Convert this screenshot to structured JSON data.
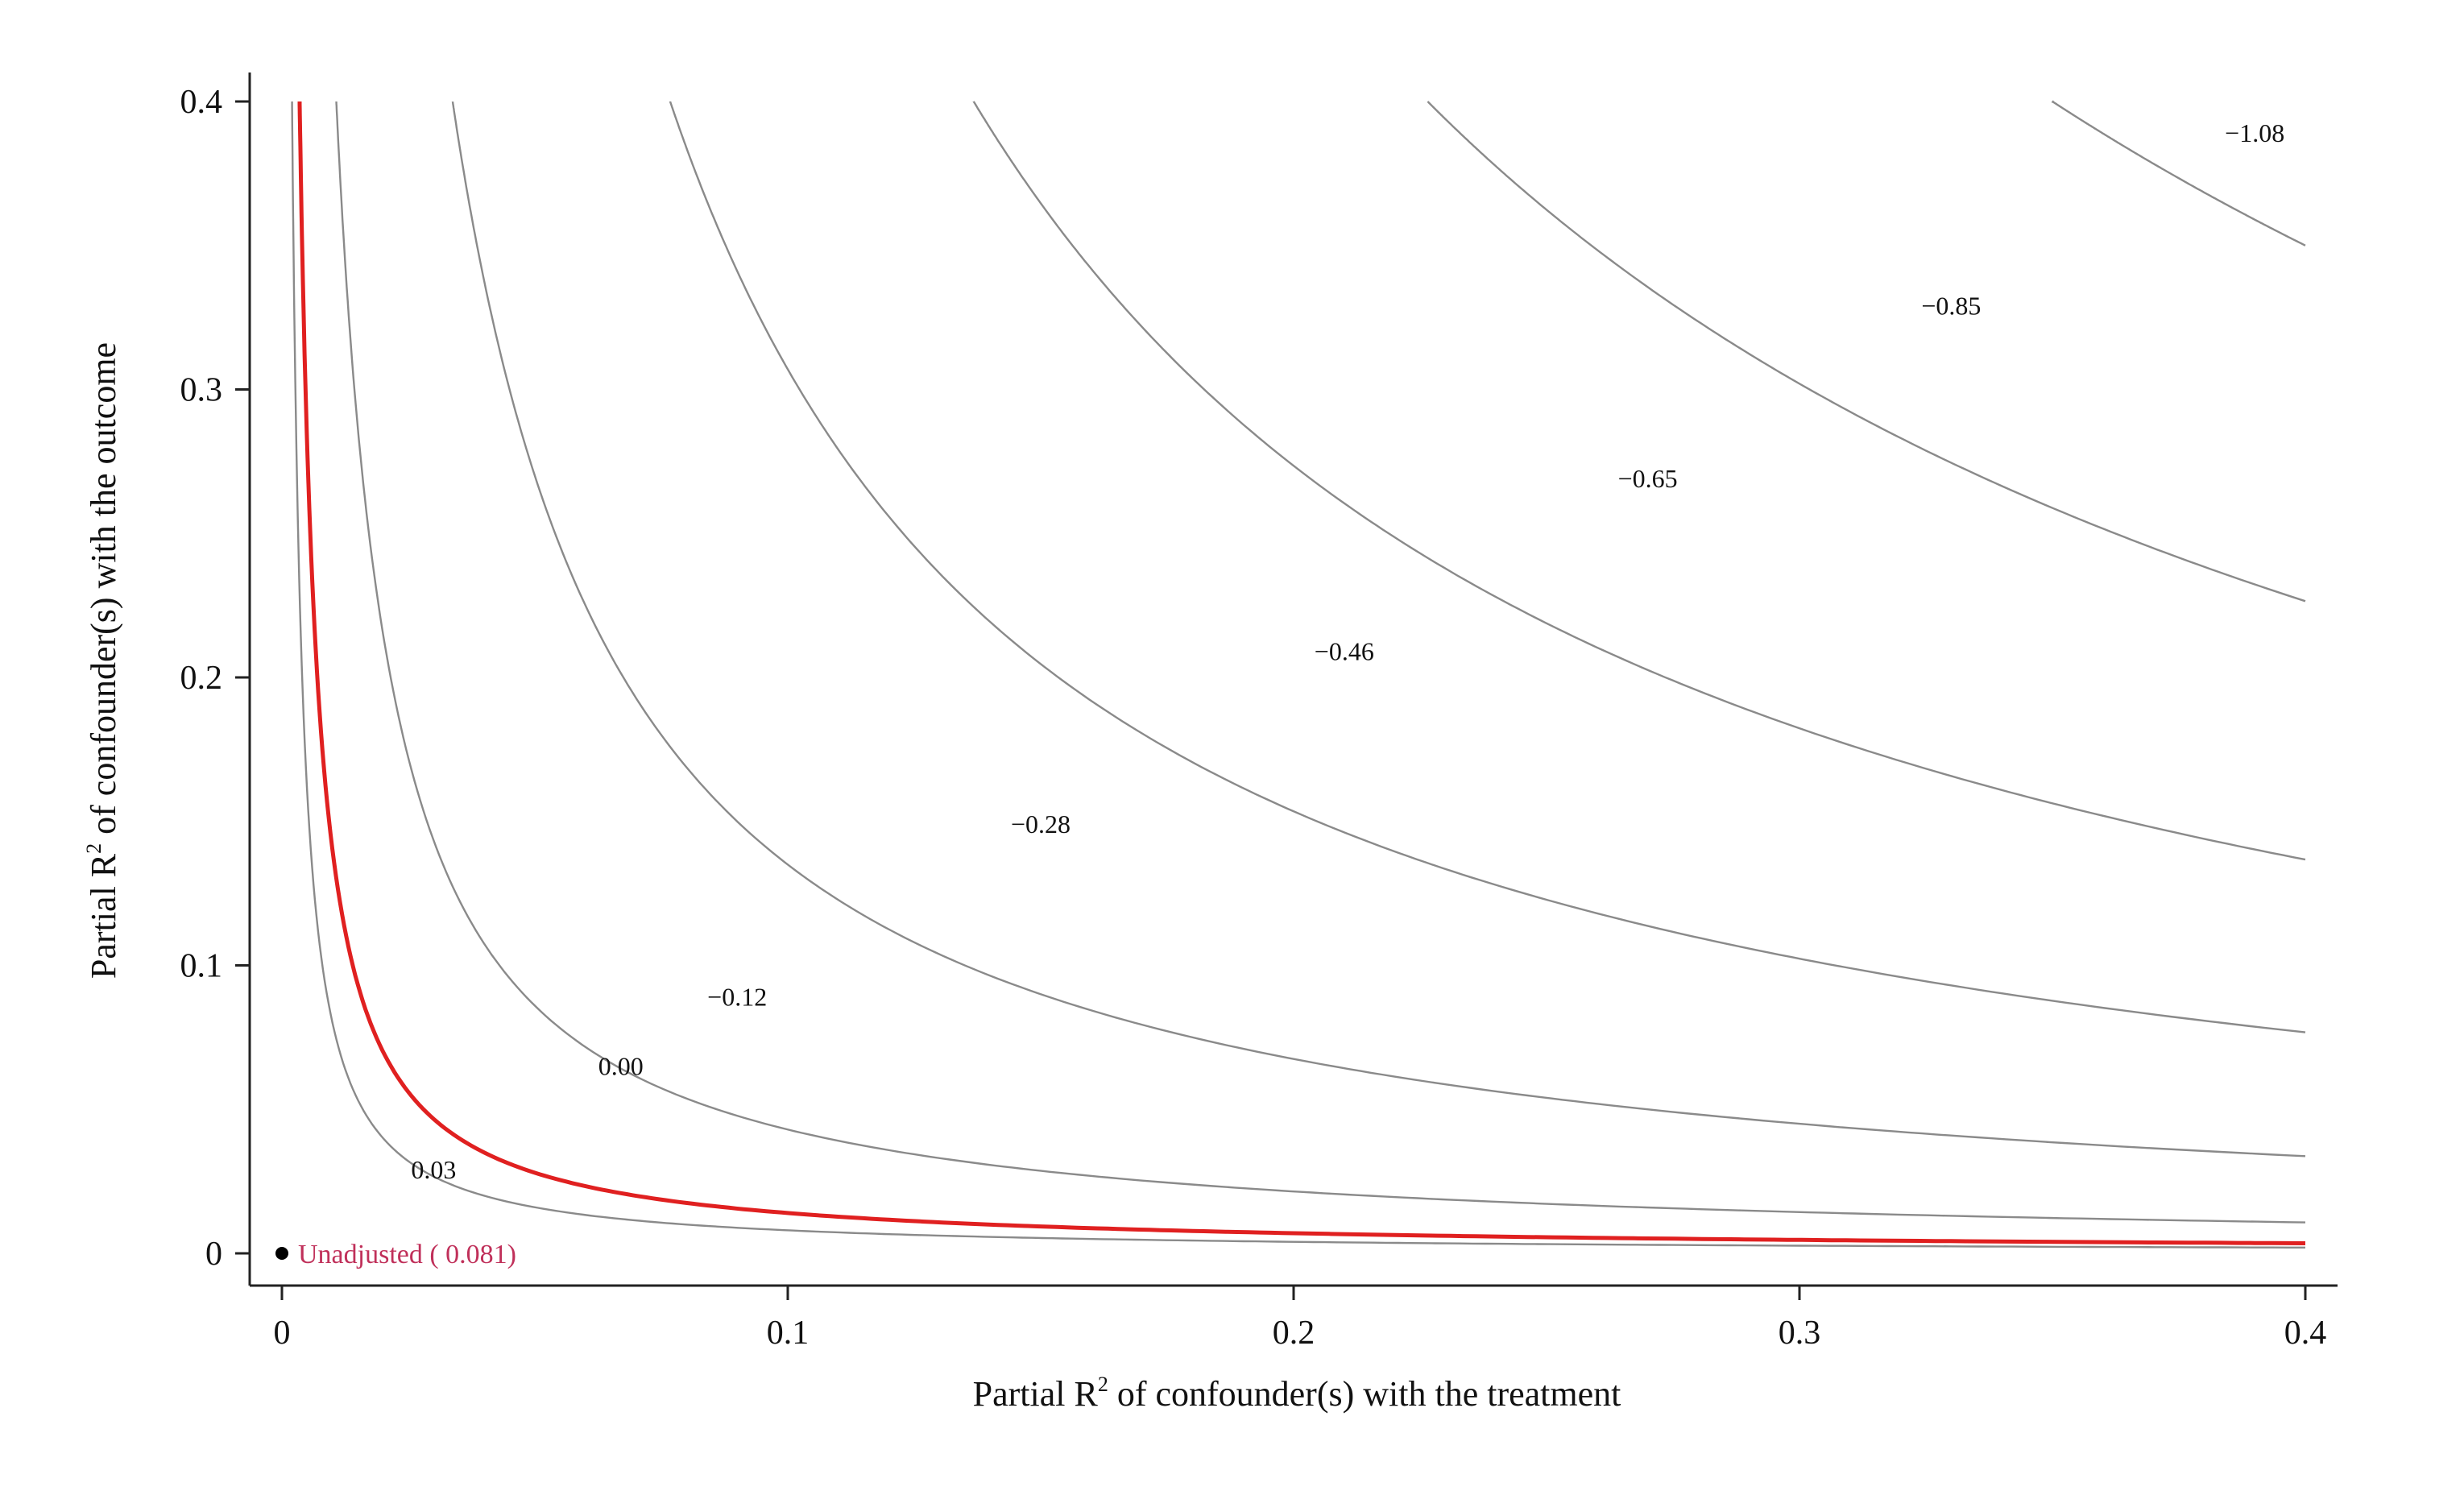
{
  "chart_data": {
    "type": "line",
    "title": "",
    "xlabel": "Partial R² of confounder(s) with the treatment",
    "ylabel": "Partial R² of confounder(s) with the outcome",
    "xlabel_parts": {
      "before": "Partial R",
      "sup": "2",
      "after": " of confounder(s) with the treatment"
    },
    "ylabel_parts": {
      "before": "Partial R",
      "sup": "2",
      "after": " of confounder(s) with the outcome"
    },
    "xlim": [
      0,
      0.4
    ],
    "ylim": [
      0,
      0.4
    ],
    "xticks": [
      {
        "value": 0,
        "label": "0"
      },
      {
        "value": 0.1,
        "label": "0.1"
      },
      {
        "value": 0.2,
        "label": "0.2"
      },
      {
        "value": 0.3,
        "label": "0.3"
      },
      {
        "value": 0.4,
        "label": "0.4"
      }
    ],
    "yticks": [
      {
        "value": 0,
        "label": "0"
      },
      {
        "value": 0.1,
        "label": "0.1"
      },
      {
        "value": 0.2,
        "label": "0.2"
      },
      {
        "value": 0.3,
        "label": "0.3"
      },
      {
        "value": 0.4,
        "label": "0.4"
      }
    ],
    "grid": false,
    "legend": "none",
    "colors": {
      "contour": "#8a8a8a",
      "threshold": "#e02020",
      "unadjusted_label": "#c0305a",
      "point": "#000000",
      "axis": "#222222"
    },
    "contours": [
      {
        "label": "0.03",
        "product": 0.0008,
        "label_at": [
          0.03,
          0.026
        ]
      },
      {
        "label": "0.00",
        "product": 0.0014,
        "label_at": [
          0.067,
          0.062
        ]
      },
      {
        "label": "−0.12",
        "product": 0.0043,
        "label_at": [
          0.09,
          0.086
        ]
      },
      {
        "label": "−0.28",
        "product": 0.0135,
        "label_at": [
          0.15,
          0.146
        ]
      },
      {
        "label": "−0.46",
        "product": 0.0307,
        "label_at": [
          0.21,
          0.206
        ]
      },
      {
        "label": "−0.65",
        "product": 0.0547,
        "label_at": [
          0.27,
          0.266
        ]
      },
      {
        "label": "−0.85",
        "product": 0.0906,
        "label_at": [
          0.33,
          0.326
        ]
      },
      {
        "label": "−1.08",
        "product": 0.14,
        "label_at": [
          0.39,
          0.386
        ]
      }
    ],
    "threshold_line": {
      "value": 0.0,
      "product": 0.0014
    },
    "unadjusted": {
      "x": 0,
      "y": 0,
      "label": "Unadjusted ( 0.081)"
    }
  }
}
